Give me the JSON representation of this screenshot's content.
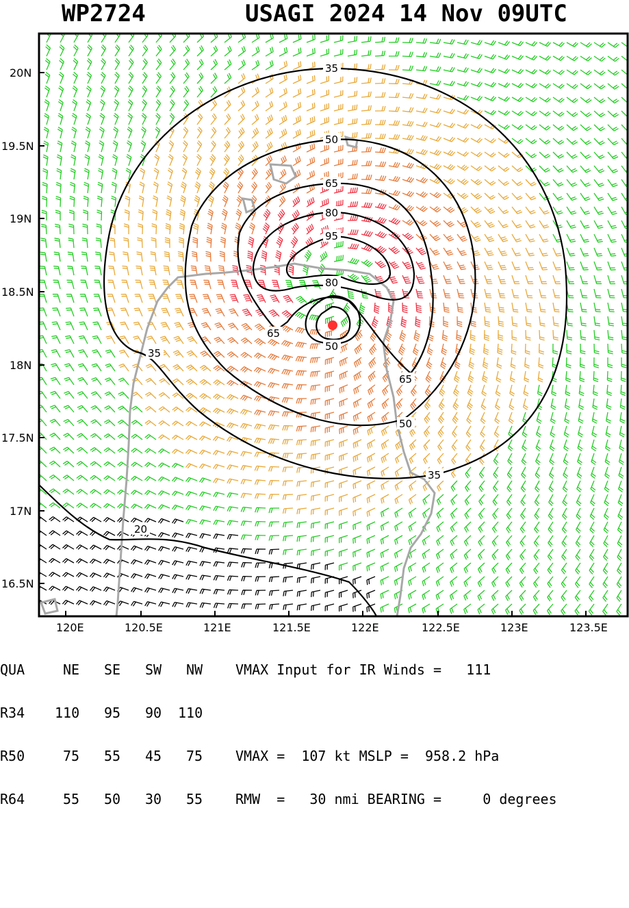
{
  "title": {
    "storm_id": "WP2724",
    "name_date": "USAGI 2024 14 Nov 09UTC"
  },
  "axes": {
    "x_ticks": [
      "120E",
      "120.5E",
      "121E",
      "121.5E",
      "122E",
      "122.5E",
      "123E",
      "123.5E"
    ],
    "y_ticks": [
      "20N",
      "19.5N",
      "19N",
      "18.5N",
      "18N",
      "17.5N",
      "17N",
      "16.5N"
    ]
  },
  "contour_labels": [
    "35",
    "50",
    "65",
    "80",
    "95",
    "80",
    "65",
    "50",
    "65",
    "50",
    "35",
    "35",
    "20"
  ],
  "center_marker": "storm-center",
  "colors": {
    "barb_weak": "#22cc22",
    "barb_ts": "#e8a838",
    "barb_strong": "#e67a3a",
    "barb_typhoon": "#ee3344",
    "barb_low": "#000000",
    "coast": "#a8a8a8",
    "center": "#ff3030"
  },
  "table": {
    "header": {
      "c0": "QUA",
      "c1": "NE",
      "c2": "SE",
      "c3": "SW",
      "c4": "NW",
      "text": "VMAX Input for IR Winds =   111"
    },
    "r34": {
      "c0": "R34",
      "c1": "110",
      "c2": "95",
      "c3": "90",
      "c4": "110",
      "text": ""
    },
    "r50": {
      "c0": "R50",
      "c1": "75",
      "c2": "55",
      "c3": "45",
      "c4": "75",
      "text": "VMAX =  107 kt MSLP =  958.2 hPa"
    },
    "r64": {
      "c0": "R64",
      "c1": "55",
      "c2": "50",
      "c3": "30",
      "c4": "55",
      "text": "RMW  =   30 nmi BEARING =     0 degrees"
    }
  }
}
